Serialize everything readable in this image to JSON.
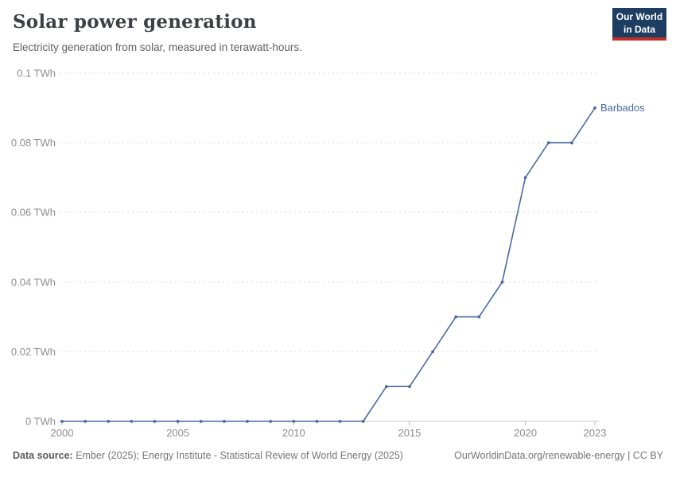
{
  "header": {
    "title": "Solar power generation",
    "subtitle": "Electricity generation from solar, measured in terawatt-hours.",
    "logo": {
      "line1": "Our World",
      "line2": "in Data",
      "bg_color": "#1d3d63",
      "accent_color": "#bf3026"
    }
  },
  "chart_data": {
    "type": "line",
    "title": "Solar power generation",
    "xlabel": "",
    "ylabel": "TWh",
    "grid": "horizontal dashed",
    "legend_position": "end-of-line label",
    "xlim": [
      2000,
      2023
    ],
    "ylim": [
      0,
      0.1
    ],
    "x_ticks": [
      2000,
      2005,
      2010,
      2015,
      2020,
      2023
    ],
    "x_tick_labels": [
      "2000",
      "2005",
      "2010",
      "2015",
      "2020",
      "2023"
    ],
    "y_ticks": [
      0,
      0.02,
      0.04,
      0.06,
      0.08,
      0.1
    ],
    "y_tick_labels": [
      "0 TWh",
      "0.02 TWh",
      "0.04 TWh",
      "0.06 TWh",
      "0.08 TWh",
      "0.1 TWh"
    ],
    "series": [
      {
        "name": "Barbados",
        "color": "#4a69a2",
        "x": [
          2000,
          2001,
          2002,
          2003,
          2004,
          2005,
          2006,
          2007,
          2008,
          2009,
          2010,
          2011,
          2012,
          2013,
          2014,
          2015,
          2016,
          2017,
          2018,
          2019,
          2020,
          2021,
          2022,
          2023
        ],
        "values": [
          0,
          0,
          0,
          0,
          0,
          0,
          0,
          0,
          0,
          0,
          0,
          0,
          0,
          0,
          0.01,
          0.01,
          0.02,
          0.03,
          0.03,
          0.04,
          0.07,
          0.08,
          0.08,
          0.09
        ]
      }
    ]
  },
  "footer": {
    "source_label": "Data source:",
    "source_text": " Ember (2025); Energy Institute - Statistical Review of World Energy (2025)",
    "link_text": "OurWorldinData.org/renewable-energy | CC BY"
  }
}
